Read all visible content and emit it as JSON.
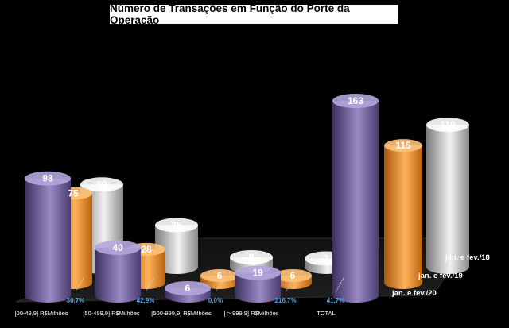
{
  "chart_data": {
    "type": "bar",
    "title": "Número de Transações em Função do Porte da Operacão",
    "categories": [
      "[00-49,9] R$Milhões",
      "[50-499,9] R$Milhões",
      "[500-999,9] R$Milhões",
      "[ > 999,9] R$Milhões",
      "TOTAL"
    ],
    "series": [
      {
        "name": "jan. e fev./20",
        "values": [
          98,
          40,
          6,
          19,
          163
        ],
        "color": "#7a6aa6"
      },
      {
        "name": "jan. e fev./19",
        "values": [
          75,
          28,
          6,
          6,
          115
        ],
        "color": "#f0922a"
      },
      {
        "name": "jan. e fev./18",
        "values": [
          69,
          35,
          8,
          7,
          119
        ],
        "color": "#c8c8c8"
      }
    ],
    "percent_changes": [
      "30,7%",
      "42,9%",
      "0,0%",
      "216,7%",
      "41,7%"
    ],
    "grid": false,
    "legend": "right"
  }
}
